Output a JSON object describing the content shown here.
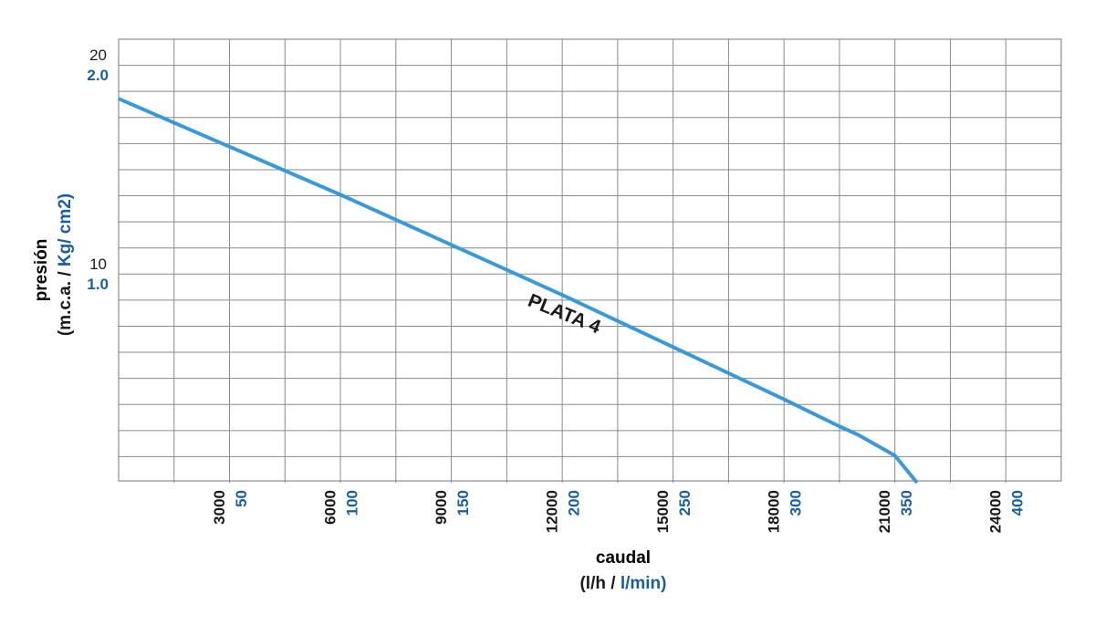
{
  "chart_data": {
    "type": "line",
    "xlabel": "caudal",
    "xlabel_units": [
      "(l/h /",
      "l/min)"
    ],
    "ylabel": "presión",
    "ylabel_units": [
      "(m.c.a. /",
      "Kg/ cm2)"
    ],
    "x": [
      0,
      3000,
      6000,
      9000,
      12000,
      15000,
      18000,
      19500,
      20000,
      21000,
      21600
    ],
    "series": [
      {
        "name": "PLATA 4",
        "color": "#3a9ad9",
        "values": [
          18.4,
          16.1,
          13.8,
          11.4,
          9.0,
          6.5,
          4.0,
          2.7,
          2.3,
          1.3,
          0
        ]
      }
    ],
    "xlim": [
      0,
      25500
    ],
    "xticks": [
      3000,
      6000,
      9000,
      12000,
      15000,
      18000,
      21000,
      24000
    ],
    "x2ticks": [
      {
        "value": 3000,
        "label": "50"
      },
      {
        "value": 6000,
        "label": "100"
      },
      {
        "value": 9000,
        "label": "150"
      },
      {
        "value": 12000,
        "label": "200"
      },
      {
        "value": 15000,
        "label": "250"
      },
      {
        "value": 18000,
        "label": "300"
      },
      {
        "value": 21000,
        "label": "350"
      },
      {
        "value": 24000,
        "label": "400"
      }
    ],
    "ylim": [
      0,
      21.25
    ],
    "yticks": [
      10,
      20
    ],
    "y2lim": [
      0,
      2.125
    ],
    "y2ticks": [
      {
        "value": 1,
        "label": "1.0"
      },
      {
        "value": 2,
        "label": "2.0"
      }
    ],
    "grid": {
      "x_step": 1500,
      "y_step": 1.25
    },
    "primary_color": "#1a1a1a",
    "secondary_color": "#1b5e9e"
  }
}
